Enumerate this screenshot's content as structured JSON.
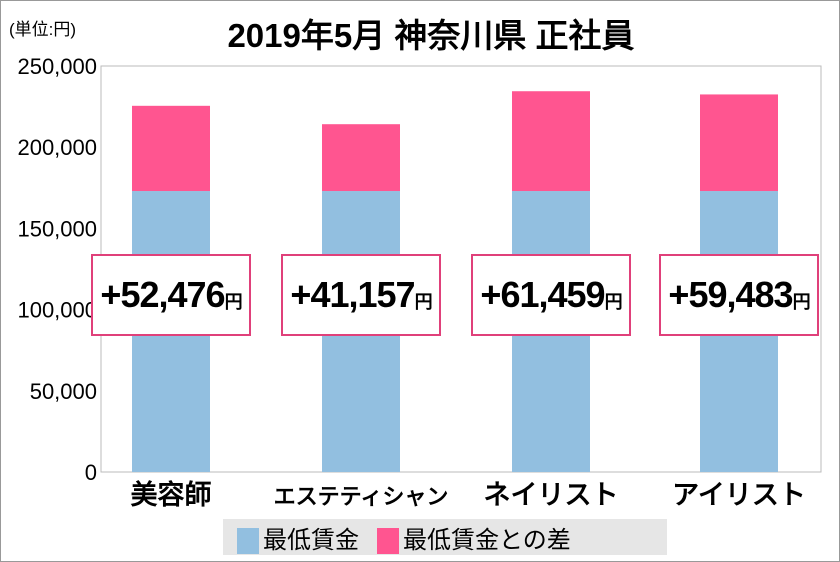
{
  "chart_data": {
    "type": "bar",
    "stacked": true,
    "title": "2019年5月 神奈川県 正社員",
    "unit_label": "(単位:円)",
    "categories": [
      "美容師",
      "エステティシャン",
      "ネイリスト",
      "アイリスト"
    ],
    "series": [
      {
        "name": "最低賃金",
        "color": "#92bfe0",
        "values": [
          173008,
          173008,
          173008,
          173008
        ]
      },
      {
        "name": "最低賃金との差",
        "color": "#ff5590",
        "values": [
          52476,
          41157,
          61459,
          59483
        ]
      }
    ],
    "data_labels": [
      "+52,476",
      "+41,157",
      "+61,459",
      "+59,483"
    ],
    "data_label_unit": "円",
    "yticks": [
      "0",
      "50,000",
      "100,000",
      "150,000",
      "200,000",
      "250,000"
    ],
    "ylim": [
      0,
      250000
    ],
    "grid": false,
    "legend": "bottom"
  }
}
